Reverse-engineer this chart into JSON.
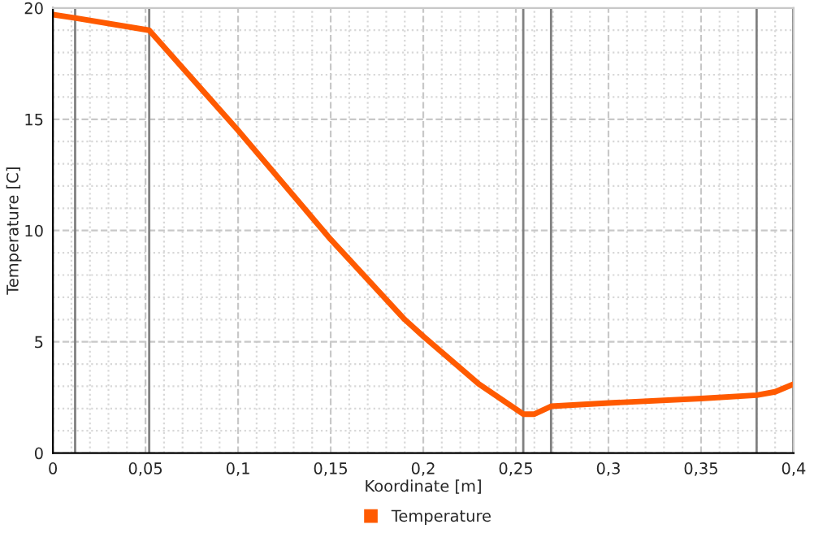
{
  "chart_data": {
    "type": "line",
    "xlabel": "Koordinate [m]",
    "ylabel": "Temperature [C]",
    "x": [
      0,
      0.012,
      0.052,
      0.1,
      0.15,
      0.19,
      0.2,
      0.23,
      0.254,
      0.26,
      0.269,
      0.3,
      0.35,
      0.38,
      0.39,
      0.4
    ],
    "series": [
      {
        "name": "Temperature",
        "color": "#ff5a00",
        "values": [
          19.7,
          19.55,
          19.0,
          14.5,
          9.6,
          6.0,
          5.25,
          3.1,
          1.75,
          1.75,
          2.1,
          2.25,
          2.45,
          2.6,
          2.75,
          3.1
        ]
      }
    ],
    "xlim": [
      0,
      0.4
    ],
    "ylim": [
      0,
      20
    ],
    "xticks": [
      {
        "value": 0,
        "label": "0"
      },
      {
        "value": 0.05,
        "label": "0,05"
      },
      {
        "value": 0.1,
        "label": "0,1"
      },
      {
        "value": 0.15,
        "label": "0,15"
      },
      {
        "value": 0.2,
        "label": "0,2"
      },
      {
        "value": 0.25,
        "label": "0,25"
      },
      {
        "value": 0.3,
        "label": "0,3"
      },
      {
        "value": 0.35,
        "label": "0,35"
      },
      {
        "value": 0.4,
        "label": "0,4"
      }
    ],
    "yticks": [
      0,
      5,
      10,
      15,
      20
    ],
    "ref_lines": [
      {
        "axis": "x",
        "value": 0.012,
        "color": "#808080"
      },
      {
        "axis": "x",
        "value": 0.052,
        "color": "#808080"
      },
      {
        "axis": "x",
        "value": 0.254,
        "color": "#808080"
      },
      {
        "axis": "x",
        "value": 0.269,
        "color": "#808080"
      },
      {
        "axis": "x",
        "value": 0.38,
        "color": "#808080"
      },
      {
        "axis": "x",
        "value": 0.4,
        "color": "#000000"
      }
    ],
    "grid": true,
    "legend": "bottom",
    "marker": "none",
    "line_style": "solid"
  }
}
